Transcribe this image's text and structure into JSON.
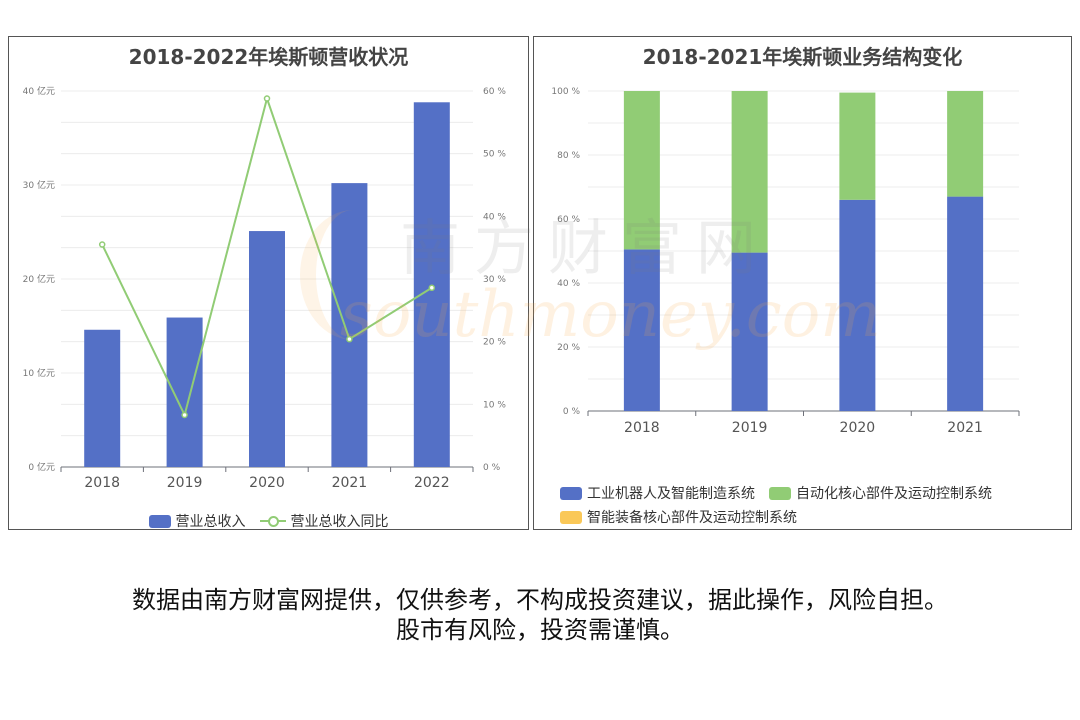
{
  "disclaimer": {
    "line1": "数据由南方财富网提供，仅供参考，不构成投资建议，据此操作，风险自担。",
    "line2": "股市有风险，投资需谨慎。"
  },
  "watermark": {
    "text_cn": "南方财富网",
    "text_en": "southmoney.com"
  },
  "colors": {
    "blue": "#5470c6",
    "green": "#91cc75",
    "yellow": "#fac858"
  },
  "chart_data": [
    {
      "type": "bar+line",
      "title": "2018-2022年埃斯顿营收状况",
      "categories": [
        "2018",
        "2019",
        "2020",
        "2021",
        "2022"
      ],
      "series": [
        {
          "name": "营业总收入",
          "type": "bar",
          "axis": "left",
          "values": [
            14.6,
            15.9,
            25.1,
            30.2,
            38.8
          ]
        },
        {
          "name": "营业总收入同比",
          "type": "line",
          "axis": "right",
          "values": [
            35.5,
            8.3,
            58.8,
            20.4,
            28.6
          ]
        }
      ],
      "ylim_left": [
        0,
        40
      ],
      "yticks_left": [
        "0 亿元",
        "10 亿元",
        "20 亿元",
        "30 亿元",
        "40 亿元"
      ],
      "ylim_right": [
        0,
        60
      ],
      "yticks_right": [
        "0 %",
        "10 %",
        "20 %",
        "30 %",
        "40 %",
        "50 %",
        "60 %"
      ],
      "grid": true,
      "legend": "bottom"
    },
    {
      "type": "stacked-bar",
      "title": "2018-2021年埃斯顿业务结构变化",
      "categories": [
        "2018",
        "2019",
        "2020",
        "2021"
      ],
      "series": [
        {
          "name": "工业机器人及智能制造系统",
          "values": [
            50.5,
            49.5,
            66.0,
            67.0
          ]
        },
        {
          "name": "自动化核心部件及运动控制系统",
          "values": [
            49.5,
            50.5,
            33.5,
            33.0
          ]
        },
        {
          "name": "智能装备核心部件及运动控制系统",
          "values": [
            0,
            0,
            0,
            0
          ]
        }
      ],
      "ylim": [
        0,
        100
      ],
      "yticks": [
        "0 %",
        "20 %",
        "40 %",
        "60 %",
        "80 %",
        "100 %"
      ],
      "grid": true,
      "legend": "bottom"
    }
  ]
}
